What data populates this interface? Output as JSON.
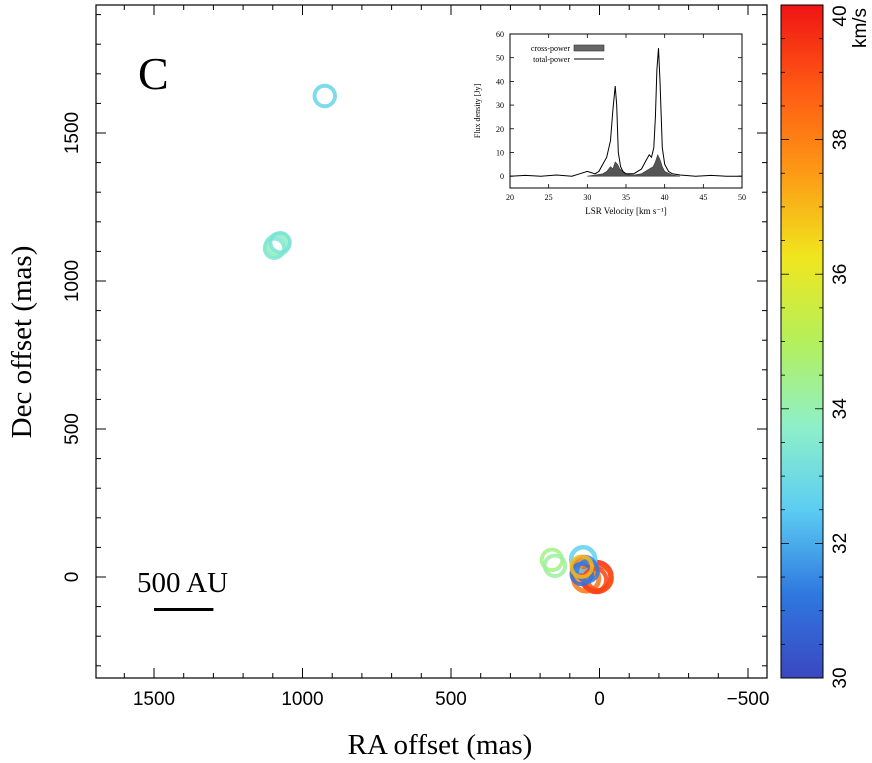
{
  "chart_data": {
    "type": "scatter",
    "panel_label": "C",
    "xlabel": "RA offset (mas)",
    "ylabel": "Dec offset (mas)",
    "xlim": [
      1720,
      -530
    ],
    "ylim": [
      -330,
      1930
    ],
    "x_ticks": [
      1500,
      1000,
      500,
      0,
      -500
    ],
    "x_tick_labels": [
      "1500",
      "1000",
      "500",
      "0",
      "−500"
    ],
    "y_ticks": [
      0,
      500,
      1000,
      1500
    ],
    "y_tick_labels": [
      "0",
      "500",
      "1000",
      "1500"
    ],
    "scale_bar": {
      "label": "500 AU",
      "x_start_mas": 1500,
      "x_end_mas": 1300,
      "y_mas": -110
    },
    "colorbar": {
      "label": "km/s",
      "min": 30,
      "max": 40,
      "ticks": [
        30,
        32,
        34,
        36,
        38,
        40
      ],
      "tick_labels": [
        "30",
        "32",
        "34",
        "36",
        "38",
        "40"
      ],
      "stops": [
        "#3a48c0",
        "#2f78e0",
        "#5ccdf2",
        "#8ff0c8",
        "#b4f05a",
        "#f0e61e",
        "#fd9a15",
        "#ff5a14",
        "#f01414"
      ]
    },
    "maser_spots": [
      {
        "ra": 925,
        "dec": 1625,
        "vlsr": 32.8,
        "flux": 2
      },
      {
        "ra": 1090,
        "dec": 1118,
        "vlsr": 33.6,
        "flux": 2
      },
      {
        "ra": 1080,
        "dec": 1125,
        "vlsr": 33.9,
        "flux": 2
      },
      {
        "ra": 1095,
        "dec": 1110,
        "vlsr": 33.4,
        "flux": 1.5
      },
      {
        "ra": 1075,
        "dec": 1130,
        "vlsr": 33.2,
        "flux": 1.5
      },
      {
        "ra": 160,
        "dec": 58,
        "vlsr": 34.5,
        "flux": 2
      },
      {
        "ra": 150,
        "dec": 38,
        "vlsr": 34.2,
        "flux": 2
      },
      {
        "ra": 55,
        "dec": 60,
        "vlsr": 32.6,
        "flux": 4
      },
      {
        "ra": 50,
        "dec": 30,
        "vlsr": 31.5,
        "flux": 3
      },
      {
        "ra": 60,
        "dec": 10,
        "vlsr": 31.0,
        "flux": 2
      },
      {
        "ra": 55,
        "dec": 20,
        "vlsr": 37.8,
        "flux": 3
      },
      {
        "ra": 45,
        "dec": -5,
        "vlsr": 38.2,
        "flux": 5
      },
      {
        "ra": 10,
        "dec": 0,
        "vlsr": 39.6,
        "flux": 8
      },
      {
        "ra": 0,
        "dec": -5,
        "vlsr": 38.9,
        "flux": 4
      },
      {
        "ra": 15,
        "dec": -10,
        "vlsr": 39.2,
        "flux": 3
      },
      {
        "ra": 40,
        "dec": 20,
        "vlsr": 31.3,
        "flux": 2
      },
      {
        "ra": 60,
        "dec": 35,
        "vlsr": 37.0,
        "flux": 2
      }
    ],
    "inset_spectrum": {
      "type": "line",
      "xlabel": "LSR Velocity [km s⁻¹]",
      "ylabel": "Flux density [Jy]",
      "xlim": [
        20,
        50
      ],
      "ylim": [
        -5,
        60
      ],
      "x_ticks": [
        20,
        25,
        30,
        35,
        40,
        45,
        50
      ],
      "y_ticks": [
        0,
        10,
        20,
        30,
        40,
        50,
        60
      ],
      "legend": [
        "cross-power",
        "total-power"
      ],
      "series": [
        {
          "name": "total-power",
          "x": [
            20,
            22,
            24,
            26,
            28,
            29,
            30,
            31,
            31.5,
            32,
            32.5,
            33,
            33.3,
            33.6,
            33.8,
            34,
            34.3,
            34.6,
            35,
            36,
            37,
            37.5,
            38,
            38.3,
            38.6,
            38.8,
            39.0,
            39.2,
            39.4,
            39.7,
            40,
            40.5,
            41,
            42,
            44,
            46,
            48,
            50
          ],
          "y": [
            0,
            0.3,
            0,
            0.5,
            0,
            1,
            2,
            1,
            2,
            5,
            8,
            15,
            28,
            38,
            30,
            10,
            4,
            2,
            1,
            1,
            3,
            6,
            9,
            8,
            12,
            25,
            45,
            54,
            40,
            12,
            5,
            2,
            1,
            0.5,
            0,
            0.3,
            0,
            0
          ]
        },
        {
          "name": "cross-power",
          "x": [
            30,
            31,
            32,
            32.5,
            33,
            33.3,
            33.6,
            33.9,
            34.2,
            34.6,
            35,
            36,
            37,
            37.5,
            38,
            38.5,
            38.8,
            39.1,
            39.4,
            39.7,
            40,
            41,
            42
          ],
          "y": [
            0,
            0.5,
            1,
            2,
            4,
            3,
            6,
            5,
            3,
            2,
            1,
            0.5,
            1,
            2,
            3,
            4,
            6,
            9,
            7,
            4,
            2,
            0.5,
            0
          ]
        }
      ]
    }
  }
}
